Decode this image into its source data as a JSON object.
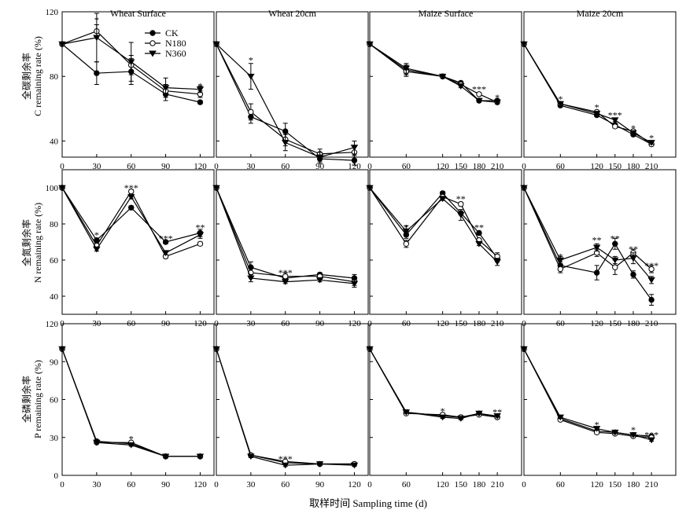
{
  "x_axis_label": "取样时间 Sampling time (d)",
  "legend": {
    "entries": [
      {
        "name": "CK",
        "marker": "circle-filled"
      },
      {
        "name": "N180",
        "marker": "circle-open"
      },
      {
        "name": "N360",
        "marker": "triangle-down-filled"
      }
    ]
  },
  "row_labels": [
    {
      "cn": "全碳剩余率",
      "en": "C remaining rate (%)"
    },
    {
      "cn": "全氮剩余率",
      "en": "N remaining rate (%)"
    },
    {
      "cn": "全磷剩余率",
      "en": "P remaining rate (%)"
    }
  ],
  "column_titles": [
    "Wheat  Surface",
    "Wheat 20cm",
    "Maize  Surface",
    "Maize 20cm"
  ],
  "chart_data": [
    {
      "type": "line",
      "row": 0,
      "col": 0,
      "title": "Wheat  Surface",
      "ylabel": "C remaining rate (%)",
      "x": [
        0,
        30,
        60,
        90,
        120
      ],
      "xticks": [
        0,
        30,
        60,
        90,
        120
      ],
      "xlim": [
        0,
        132
      ],
      "ylim": [
        30,
        120
      ],
      "yticks": [
        40,
        80,
        120
      ],
      "series": [
        {
          "name": "CK",
          "values": [
            100,
            82,
            83,
            69,
            64
          ],
          "errors": [
            0,
            7,
            8,
            4,
            1
          ]
        },
        {
          "name": "N180",
          "values": [
            100,
            108,
            87,
            71,
            69
          ],
          "errors": [
            0,
            4,
            6,
            4,
            2
          ]
        },
        {
          "name": "N360",
          "values": [
            100,
            104,
            89,
            73,
            72
          ],
          "errors": [
            0,
            15,
            12,
            6,
            2
          ]
        }
      ],
      "annotations": [
        {
          "x": 30,
          "y": 115,
          "text": "*"
        },
        {
          "x": 120,
          "y": 74,
          "text": "*"
        }
      ]
    },
    {
      "type": "line",
      "row": 0,
      "col": 1,
      "title": "Wheat 20cm",
      "x": [
        0,
        30,
        60,
        90,
        120
      ],
      "xticks": [
        0,
        30,
        60,
        90,
        120
      ],
      "xlim": [
        0,
        132
      ],
      "ylim": [
        30,
        120
      ],
      "yticks": [
        40,
        80,
        120
      ],
      "series": [
        {
          "name": "CK",
          "values": [
            100,
            55,
            46,
            29,
            28
          ],
          "errors": [
            0,
            4,
            5,
            3,
            3
          ]
        },
        {
          "name": "N180",
          "values": [
            100,
            58,
            41,
            32,
            33
          ],
          "errors": [
            0,
            5,
            4,
            3,
            4
          ]
        },
        {
          "name": "N360",
          "values": [
            100,
            80,
            39,
            30,
            36
          ],
          "errors": [
            0,
            8,
            5,
            3,
            4
          ]
        }
      ],
      "annotations": [
        {
          "x": 30,
          "y": 90,
          "text": "*"
        }
      ]
    },
    {
      "type": "line",
      "row": 0,
      "col": 2,
      "title": "Maize  Surface",
      "x": [
        0,
        60,
        120,
        150,
        180,
        210
      ],
      "xticks": [
        0,
        60,
        120,
        150,
        180,
        210
      ],
      "xlim": [
        0,
        250
      ],
      "ylim": [
        30,
        120
      ],
      "yticks": [
        40,
        80,
        120
      ],
      "series": [
        {
          "name": "CK",
          "values": [
            100,
            84,
            80,
            76,
            65,
            65
          ],
          "errors": [
            0,
            3,
            1,
            1,
            1,
            1
          ]
        },
        {
          "name": "N180",
          "values": [
            100,
            83,
            80,
            75,
            69,
            64
          ],
          "errors": [
            0,
            3,
            1,
            1,
            1,
            1
          ]
        },
        {
          "name": "N360",
          "values": [
            100,
            85,
            80,
            74,
            65,
            64
          ],
          "errors": [
            0,
            3,
            1,
            1,
            1,
            1
          ]
        }
      ],
      "annotations": [
        {
          "x": 180,
          "y": 72,
          "text": "***"
        },
        {
          "x": 210,
          "y": 67,
          "text": "*"
        }
      ]
    },
    {
      "type": "line",
      "row": 0,
      "col": 3,
      "title": "Maize 20cm",
      "x": [
        0,
        60,
        120,
        150,
        180,
        210
      ],
      "xticks": [
        0,
        60,
        120,
        150,
        180,
        210
      ],
      "xlim": [
        0,
        250
      ],
      "ylim": [
        30,
        120
      ],
      "yticks": [
        40,
        80,
        120
      ],
      "series": [
        {
          "name": "CK",
          "values": [
            100,
            62,
            56,
            50,
            44,
            38
          ],
          "errors": [
            0,
            1,
            1,
            1,
            1,
            1
          ]
        },
        {
          "name": "N180",
          "values": [
            100,
            63,
            58,
            49,
            46,
            38
          ],
          "errors": [
            0,
            1,
            1,
            1,
            1,
            1
          ]
        },
        {
          "name": "N360",
          "values": [
            100,
            63,
            57,
            53,
            45,
            39
          ],
          "errors": [
            0,
            1,
            1,
            1,
            1,
            1
          ]
        }
      ],
      "annotations": [
        {
          "x": 60,
          "y": 66,
          "text": "*"
        },
        {
          "x": 120,
          "y": 61,
          "text": "*"
        },
        {
          "x": 150,
          "y": 56,
          "text": "***"
        },
        {
          "x": 180,
          "y": 48,
          "text": "*"
        },
        {
          "x": 210,
          "y": 42,
          "text": "*"
        }
      ]
    },
    {
      "type": "line",
      "row": 1,
      "col": 0,
      "ylabel": "N remaining rate (%)",
      "x": [
        0,
        30,
        60,
        90,
        120
      ],
      "xticks": [
        0,
        30,
        60,
        90,
        120
      ],
      "xlim": [
        0,
        132
      ],
      "ylim": [
        30,
        110
      ],
      "yticks": [
        40,
        60,
        80,
        100
      ],
      "series": [
        {
          "name": "CK",
          "values": [
            100,
            71,
            89,
            70,
            75
          ],
          "errors": [
            0,
            1,
            1,
            1,
            2
          ]
        },
        {
          "name": "N180",
          "values": [
            100,
            68,
            98,
            62,
            69
          ],
          "errors": [
            0,
            1,
            1,
            1,
            1
          ]
        },
        {
          "name": "N360",
          "values": [
            100,
            66,
            95,
            64,
            74
          ],
          "errors": [
            0,
            1,
            1,
            1,
            2
          ]
        }
      ],
      "annotations": [
        {
          "x": 30,
          "y": 74,
          "text": "*"
        },
        {
          "x": 60,
          "y": 100,
          "text": "***"
        },
        {
          "x": 90,
          "y": 72,
          "text": "***"
        },
        {
          "x": 120,
          "y": 78,
          "text": "**"
        }
      ]
    },
    {
      "type": "line",
      "row": 1,
      "col": 1,
      "x": [
        0,
        30,
        60,
        90,
        120
      ],
      "xticks": [
        0,
        30,
        60,
        90,
        120
      ],
      "xlim": [
        0,
        132
      ],
      "ylim": [
        30,
        110
      ],
      "yticks": [
        40,
        60,
        80,
        100
      ],
      "series": [
        {
          "name": "CK",
          "values": [
            100,
            56,
            50,
            52,
            50
          ],
          "errors": [
            0,
            3,
            2,
            1,
            2
          ]
        },
        {
          "name": "N180",
          "values": [
            100,
            53,
            51,
            51,
            48
          ],
          "errors": [
            0,
            3,
            2,
            1,
            2
          ]
        },
        {
          "name": "N360",
          "values": [
            100,
            50,
            48,
            49,
            47
          ],
          "errors": [
            0,
            2,
            1,
            1,
            2
          ]
        }
      ],
      "annotations": [
        {
          "x": 60,
          "y": 53,
          "text": "***"
        }
      ]
    },
    {
      "type": "line",
      "row": 1,
      "col": 2,
      "x": [
        0,
        60,
        120,
        150,
        180,
        210
      ],
      "xticks": [
        0,
        60,
        120,
        150,
        180,
        210
      ],
      "xlim": [
        0,
        250
      ],
      "ylim": [
        30,
        110
      ],
      "yticks": [
        40,
        60,
        80,
        100
      ],
      "series": [
        {
          "name": "CK",
          "values": [
            100,
            74,
            97,
            86,
            75,
            61
          ],
          "errors": [
            0,
            2,
            1,
            1,
            1,
            2
          ]
        },
        {
          "name": "N180",
          "values": [
            100,
            69,
            95,
            91,
            71,
            62
          ],
          "errors": [
            0,
            2,
            1,
            1,
            1,
            2
          ]
        },
        {
          "name": "N360",
          "values": [
            100,
            76,
            94,
            85,
            69,
            59
          ],
          "errors": [
            0,
            3,
            1,
            3,
            1,
            2
          ]
        }
      ],
      "annotations": [
        {
          "x": 60,
          "y": 78,
          "text": "*"
        },
        {
          "x": 150,
          "y": 94,
          "text": "**"
        },
        {
          "x": 180,
          "y": 78,
          "text": "**"
        }
      ]
    },
    {
      "type": "line",
      "row": 1,
      "col": 3,
      "x": [
        0,
        60,
        120,
        150,
        180,
        210
      ],
      "xticks": [
        0,
        60,
        120,
        150,
        180,
        210
      ],
      "xlim": [
        0,
        250
      ],
      "ylim": [
        30,
        110
      ],
      "yticks": [
        40,
        60,
        80,
        100
      ],
      "series": [
        {
          "name": "CK",
          "values": [
            100,
            57,
            53,
            69,
            52,
            38
          ],
          "errors": [
            0,
            2,
            4,
            3,
            2,
            3
          ]
        },
        {
          "name": "N180",
          "values": [
            100,
            55,
            64,
            56,
            64,
            55
          ],
          "errors": [
            0,
            2,
            2,
            4,
            2,
            2
          ]
        },
        {
          "name": "N360",
          "values": [
            100,
            60,
            67,
            60,
            61,
            49
          ],
          "errors": [
            0,
            2,
            2,
            2,
            3,
            2
          ]
        }
      ],
      "annotations": [
        {
          "x": 60,
          "y": 62,
          "text": "*"
        },
        {
          "x": 120,
          "y": 71,
          "text": "**"
        },
        {
          "x": 150,
          "y": 72,
          "text": "**"
        },
        {
          "x": 180,
          "y": 66,
          "text": "**"
        },
        {
          "x": 210,
          "y": 57,
          "text": "***"
        }
      ]
    },
    {
      "type": "line",
      "row": 2,
      "col": 0,
      "ylabel": "P remaining rate (%)",
      "x": [
        0,
        30,
        60,
        90,
        120
      ],
      "xticks": [
        0,
        30,
        60,
        90,
        120
      ],
      "xlim": [
        0,
        132
      ],
      "ylim": [
        0,
        120
      ],
      "yticks": [
        0,
        30,
        60,
        90,
        120
      ],
      "series": [
        {
          "name": "CK",
          "values": [
            100,
            27,
            25,
            15,
            15
          ],
          "errors": [
            0,
            1,
            1,
            1,
            1
          ]
        },
        {
          "name": "N180",
          "values": [
            100,
            26,
            26,
            15,
            15
          ],
          "errors": [
            0,
            1,
            1,
            1,
            1
          ]
        },
        {
          "name": "N360",
          "values": [
            100,
            26,
            24,
            15,
            15
          ],
          "errors": [
            0,
            1,
            1,
            1,
            1
          ]
        }
      ],
      "annotations": [
        {
          "x": 60,
          "y": 29,
          "text": "*"
        }
      ]
    },
    {
      "type": "line",
      "row": 2,
      "col": 1,
      "x": [
        0,
        30,
        60,
        90,
        120
      ],
      "xticks": [
        0,
        30,
        60,
        90,
        120
      ],
      "xlim": [
        0,
        132
      ],
      "ylim": [
        0,
        120
      ],
      "yticks": [
        0,
        30,
        60,
        90,
        120
      ],
      "series": [
        {
          "name": "CK",
          "values": [
            100,
            16,
            10,
            9,
            9
          ],
          "errors": [
            0,
            1,
            1,
            1,
            1
          ]
        },
        {
          "name": "N180",
          "values": [
            100,
            16,
            11,
            9,
            9
          ],
          "errors": [
            0,
            1,
            1,
            1,
            1
          ]
        },
        {
          "name": "N360",
          "values": [
            100,
            15,
            8,
            9,
            8
          ],
          "errors": [
            0,
            1,
            1,
            1,
            1
          ]
        }
      ],
      "annotations": [
        {
          "x": 60,
          "y": 13,
          "text": "***"
        }
      ]
    },
    {
      "type": "line",
      "row": 2,
      "col": 2,
      "x": [
        0,
        60,
        120,
        150,
        180,
        210
      ],
      "xticks": [
        0,
        60,
        120,
        150,
        180,
        210
      ],
      "xlim": [
        0,
        250
      ],
      "ylim": [
        0,
        120
      ],
      "yticks": [
        0,
        30,
        60,
        90,
        120
      ],
      "series": [
        {
          "name": "CK",
          "values": [
            100,
            50,
            47,
            46,
            49,
            46
          ],
          "errors": [
            0,
            1,
            1,
            1,
            1,
            1
          ]
        },
        {
          "name": "N180",
          "values": [
            100,
            49,
            48,
            46,
            48,
            46
          ],
          "errors": [
            0,
            1,
            1,
            1,
            1,
            1
          ]
        },
        {
          "name": "N360",
          "values": [
            100,
            50,
            46,
            45,
            49,
            47
          ],
          "errors": [
            0,
            1,
            1,
            1,
            1,
            1
          ]
        }
      ],
      "annotations": [
        {
          "x": 120,
          "y": 51,
          "text": "*"
        },
        {
          "x": 210,
          "y": 50,
          "text": "**"
        }
      ]
    },
    {
      "type": "line",
      "row": 2,
      "col": 3,
      "x": [
        0,
        60,
        120,
        150,
        180,
        210
      ],
      "xticks": [
        0,
        60,
        120,
        150,
        180,
        210
      ],
      "xlim": [
        0,
        250
      ],
      "ylim": [
        0,
        120
      ],
      "yticks": [
        0,
        30,
        60,
        90,
        120
      ],
      "series": [
        {
          "name": "CK",
          "values": [
            100,
            45,
            35,
            34,
            32,
            31
          ],
          "errors": [
            0,
            1,
            1,
            1,
            1,
            1
          ]
        },
        {
          "name": "N180",
          "values": [
            100,
            44,
            34,
            33,
            31,
            30
          ],
          "errors": [
            0,
            1,
            1,
            1,
            1,
            1
          ]
        },
        {
          "name": "N360",
          "values": [
            100,
            46,
            37,
            34,
            32,
            28
          ],
          "errors": [
            0,
            1,
            1,
            1,
            1,
            1
          ]
        }
      ],
      "annotations": [
        {
          "x": 120,
          "y": 40,
          "text": "*"
        },
        {
          "x": 180,
          "y": 36,
          "text": "*"
        },
        {
          "x": 210,
          "y": 32,
          "text": "***"
        }
      ]
    }
  ]
}
